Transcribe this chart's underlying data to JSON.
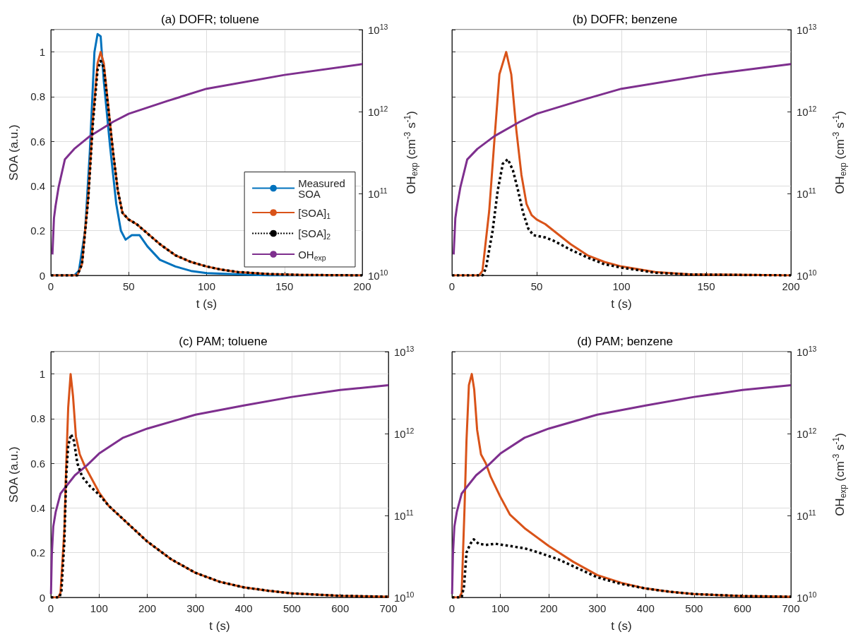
{
  "chart_data": [
    {
      "type": "line",
      "title": "(a) DOFR; toluene",
      "xlabel": "t (s)",
      "ylabel": "SOA (a.u.)",
      "y2label": "OH$_{exp}$ (cm$^{-3}$ s$^{-1}$)",
      "xlim": [
        0,
        200
      ],
      "xticks": [
        0,
        50,
        100,
        150,
        200
      ],
      "ylim": [
        0,
        1.1
      ],
      "yticks": [
        0,
        0.2,
        0.4,
        0.6,
        0.8,
        1
      ],
      "y2lim": [
        10000000000.0,
        10000000000000.0
      ],
      "y2ticks": [
        {
          "value": 10000000000.0,
          "label": "10$^{10}$"
        },
        {
          "value": 100000000000.0,
          "label": "10$^{11}$"
        },
        {
          "value": 1000000000000.0,
          "label": "10$^{12}$"
        },
        {
          "value": 10000000000000.0,
          "label": "10$^{13}$"
        }
      ],
      "log": "y2",
      "grid": true,
      "marker": "none",
      "legend": "bottom right",
      "series": [
        {
          "name": "Measured SOA",
          "color": "#0072bd",
          "line_style": "solid",
          "x": [
            0,
            15,
            18,
            22,
            25,
            28,
            30,
            32,
            34,
            38,
            42,
            45,
            48,
            52,
            57,
            62,
            70,
            80,
            90,
            100,
            120,
            140,
            200
          ],
          "values": [
            0,
            0,
            0.02,
            0.2,
            0.55,
            1.0,
            1.08,
            1.07,
            0.87,
            0.58,
            0.32,
            0.2,
            0.16,
            0.18,
            0.18,
            0.13,
            0.07,
            0.04,
            0.02,
            0.01,
            0.005,
            0,
            0
          ]
        },
        {
          "name": "[SOA]$_{1}$",
          "color": "#d95319",
          "line_style": "solid",
          "x": [
            0,
            17,
            20,
            24,
            27,
            30,
            32,
            34,
            37,
            40,
            43,
            46,
            50,
            55,
            60,
            65,
            70,
            80,
            90,
            100,
            110,
            120,
            140,
            160,
            200
          ],
          "values": [
            0,
            0,
            0.05,
            0.35,
            0.7,
            0.95,
            1.0,
            0.95,
            0.75,
            0.55,
            0.38,
            0.28,
            0.25,
            0.23,
            0.2,
            0.17,
            0.14,
            0.09,
            0.06,
            0.04,
            0.025,
            0.015,
            0.006,
            0.002,
            0
          ]
        },
        {
          "name": "[SOA]$_{2}$",
          "color": "#000000",
          "line_style": "dotted",
          "x": [
            0,
            17,
            20,
            24,
            27,
            30,
            32,
            34,
            37,
            40,
            43,
            46,
            50,
            55,
            60,
            65,
            70,
            80,
            90,
            100,
            110,
            120,
            140,
            160,
            200
          ],
          "values": [
            0,
            0,
            0.05,
            0.34,
            0.68,
            0.92,
            0.96,
            0.93,
            0.74,
            0.55,
            0.38,
            0.28,
            0.25,
            0.23,
            0.2,
            0.17,
            0.14,
            0.09,
            0.06,
            0.04,
            0.025,
            0.015,
            0.006,
            0.002,
            0
          ]
        },
        {
          "name": "OH$_{exp}$",
          "color": "#7e2f8e",
          "line_style": "solid",
          "axis": "y2",
          "x": [
            1,
            2,
            3,
            5,
            9,
            15,
            25,
            40,
            50,
            75,
            100,
            150,
            200
          ],
          "values": [
            18000000000.0,
            50000000000.0,
            70000000000.0,
            120000000000.0,
            260000000000.0,
            350000000000.0,
            500000000000.0,
            750000000000.0,
            940000000000.0,
            1350000000000.0,
            1900000000000.0,
            2800000000000.0,
            3800000000000.0
          ]
        }
      ]
    },
    {
      "type": "line",
      "title": "(b) DOFR; benzene",
      "xlabel": "t (s)",
      "y2label": "OH$_{exp}$ (cm$^{-3}$ s$^{-1}$)",
      "xlim": [
        0,
        200
      ],
      "xticks": [
        0,
        50,
        100,
        150,
        200
      ],
      "ylim": [
        0,
        1.1
      ],
      "y2lim": [
        10000000000.0,
        10000000000000.0
      ],
      "y2ticks": [
        {
          "value": 10000000000.0,
          "label": "10$^{10}$"
        },
        {
          "value": 100000000000.0,
          "label": "10$^{11}$"
        },
        {
          "value": 1000000000000.0,
          "label": "10$^{12}$"
        },
        {
          "value": 10000000000000.0,
          "label": "10$^{13}$"
        }
      ],
      "log": "y2",
      "grid": true,
      "marker": "none",
      "tick_labels": [
        "x",
        "y2"
      ],
      "series": [
        {
          "color": "#d95319",
          "line_style": "solid",
          "x": [
            0,
            16,
            18,
            22,
            25,
            28,
            32,
            35,
            38,
            41,
            44,
            47,
            50,
            55,
            60,
            65,
            70,
            80,
            90,
            100,
            120,
            140,
            200
          ],
          "values": [
            0,
            0,
            0.02,
            0.29,
            0.6,
            0.9,
            1.0,
            0.9,
            0.65,
            0.45,
            0.32,
            0.27,
            0.25,
            0.23,
            0.2,
            0.17,
            0.14,
            0.09,
            0.06,
            0.04,
            0.015,
            0.005,
            0
          ]
        },
        {
          "color": "#000000",
          "line_style": "dotted",
          "x": [
            0,
            18,
            20,
            24,
            27,
            30,
            33,
            36,
            39,
            42,
            45,
            48,
            55,
            60,
            65,
            70,
            80,
            90,
            100,
            120,
            140,
            200
          ],
          "values": [
            0,
            0,
            0.03,
            0.2,
            0.38,
            0.5,
            0.52,
            0.47,
            0.38,
            0.28,
            0.21,
            0.18,
            0.17,
            0.155,
            0.135,
            0.115,
            0.08,
            0.05,
            0.035,
            0.012,
            0.004,
            0
          ]
        },
        {
          "color": "#7e2f8e",
          "line_style": "solid",
          "axis": "y2",
          "x": [
            1,
            2,
            3,
            5,
            9,
            15,
            25,
            40,
            50,
            75,
            100,
            150,
            200
          ],
          "values": [
            18000000000.0,
            50000000000.0,
            70000000000.0,
            120000000000.0,
            260000000000.0,
            350000000000.0,
            500000000000.0,
            750000000000.0,
            940000000000.0,
            1350000000000.0,
            1900000000000.0,
            2800000000000.0,
            3800000000000.0
          ]
        }
      ]
    },
    {
      "type": "line",
      "title": "(c) PAM; toluene",
      "xlabel": "t (s)",
      "ylabel": "SOA (a.u.)",
      "xlim": [
        0,
        700
      ],
      "xticks": [
        0,
        100,
        200,
        300,
        400,
        500,
        600,
        700
      ],
      "ylim": [
        0,
        1.1
      ],
      "yticks": [
        0,
        0.2,
        0.4,
        0.6,
        0.8,
        1
      ],
      "y2lim": [
        10000000000.0,
        10000000000000.0
      ],
      "y2ticks": [
        {
          "value": 10000000000.0,
          "label": "10$^{10}$"
        },
        {
          "value": 100000000000.0,
          "label": "10$^{11}$"
        },
        {
          "value": 1000000000000.0,
          "label": "10$^{12}$"
        },
        {
          "value": 10000000000000.0,
          "label": "10$^{13}$"
        }
      ],
      "log": "y2",
      "grid": true,
      "marker": "none",
      "series": [
        {
          "color": "#d95319",
          "line_style": "solid",
          "x": [
            0,
            15,
            20,
            28,
            32,
            36,
            41,
            46,
            52,
            60,
            70,
            80,
            100,
            120,
            150,
            200,
            250,
            300,
            350,
            400,
            450,
            500,
            600,
            700
          ],
          "values": [
            0,
            0,
            0.02,
            0.3,
            0.6,
            0.85,
            1.0,
            0.9,
            0.72,
            0.64,
            0.59,
            0.55,
            0.47,
            0.41,
            0.35,
            0.25,
            0.17,
            0.11,
            0.07,
            0.045,
            0.03,
            0.018,
            0.007,
            0.003
          ]
        },
        {
          "color": "#000000",
          "line_style": "dotted",
          "x": [
            0,
            18,
            22,
            28,
            32,
            36,
            42,
            48,
            55,
            65,
            80,
            100,
            120,
            150,
            200,
            250,
            300,
            350,
            400,
            450,
            500,
            600,
            700
          ],
          "values": [
            0,
            0,
            0.03,
            0.25,
            0.55,
            0.68,
            0.73,
            0.7,
            0.6,
            0.54,
            0.5,
            0.46,
            0.41,
            0.35,
            0.25,
            0.17,
            0.11,
            0.07,
            0.045,
            0.03,
            0.018,
            0.007,
            0.003
          ]
        },
        {
          "color": "#7e2f8e",
          "line_style": "solid",
          "axis": "y2",
          "x": [
            0.3,
            2,
            5,
            10,
            20,
            30,
            50,
            75,
            100,
            150,
            200,
            300,
            400,
            500,
            600,
            700
          ],
          "values": [
            11000000000.0,
            33000000000.0,
            73000000000.0,
            110000000000.0,
            185000000000.0,
            220000000000.0,
            310000000000.0,
            410000000000.0,
            570000000000.0,
            890000000000.0,
            1150000000000.0,
            1700000000000.0,
            2200000000000.0,
            2800000000000.0,
            3400000000000.0,
            3900000000000.0
          ]
        }
      ]
    },
    {
      "type": "line",
      "title": "(d) PAM; benzene",
      "xlabel": "t (s)",
      "y2label": "OH$_{exp}$ (cm$^{-3}$ s$^{-1}$)",
      "xlim": [
        0,
        700
      ],
      "xticks": [
        0,
        100,
        200,
        300,
        400,
        500,
        600,
        700
      ],
      "ylim": [
        0,
        1.1
      ],
      "y2lim": [
        10000000000.0,
        10000000000000.0
      ],
      "y2ticks": [
        {
          "value": 10000000000.0,
          "label": "10$^{10}$"
        },
        {
          "value": 100000000000.0,
          "label": "10$^{11}$"
        },
        {
          "value": 1000000000000.0,
          "label": "10$^{12}$"
        },
        {
          "value": 10000000000000.0,
          "label": "10$^{13}$"
        }
      ],
      "log": "y2",
      "grid": true,
      "marker": "none",
      "tick_labels": [
        "x",
        "y2"
      ],
      "series": [
        {
          "color": "#d95319",
          "line_style": "solid",
          "x": [
            0,
            15,
            20,
            26,
            30,
            35,
            41,
            46,
            52,
            60,
            70,
            80,
            100,
            120,
            150,
            200,
            250,
            300,
            350,
            400,
            450,
            500,
            600,
            700
          ],
          "values": [
            0,
            0,
            0.02,
            0.4,
            0.7,
            0.95,
            1.0,
            0.93,
            0.75,
            0.64,
            0.6,
            0.54,
            0.45,
            0.37,
            0.31,
            0.23,
            0.16,
            0.1,
            0.065,
            0.04,
            0.025,
            0.015,
            0.006,
            0.003
          ]
        },
        {
          "color": "#000000",
          "line_style": "dotted",
          "x": [
            0,
            20,
            25,
            30,
            38,
            45,
            55,
            70,
            90,
            120,
            150,
            180,
            220,
            260,
            300,
            350,
            400,
            450,
            500,
            600,
            700
          ],
          "values": [
            0,
            0,
            0.05,
            0.2,
            0.24,
            0.26,
            0.24,
            0.235,
            0.24,
            0.23,
            0.22,
            0.2,
            0.17,
            0.13,
            0.09,
            0.06,
            0.04,
            0.025,
            0.015,
            0.006,
            0.003
          ]
        },
        {
          "color": "#7e2f8e",
          "line_style": "solid",
          "axis": "y2",
          "x": [
            0.3,
            2,
            5,
            10,
            20,
            30,
            50,
            75,
            100,
            150,
            200,
            300,
            400,
            500,
            600,
            700
          ],
          "values": [
            11000000000.0,
            33000000000.0,
            73000000000.0,
            110000000000.0,
            185000000000.0,
            220000000000.0,
            310000000000.0,
            410000000000.0,
            570000000000.0,
            890000000000.0,
            1150000000000.0,
            1700000000000.0,
            2200000000000.0,
            2800000000000.0,
            3400000000000.0,
            3900000000000.0
          ]
        }
      ]
    }
  ]
}
